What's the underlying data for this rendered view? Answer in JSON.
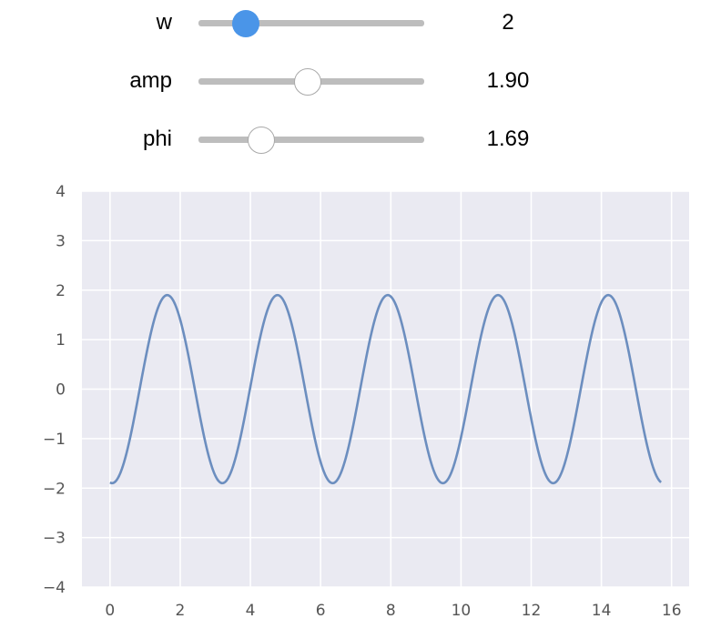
{
  "sliders": [
    {
      "label": "w",
      "value_text": "2",
      "fraction": 0.21,
      "active": true
    },
    {
      "label": "amp",
      "value_text": "1.90",
      "fraction": 0.485,
      "active": false
    },
    {
      "label": "phi",
      "value_text": "1.69",
      "fraction": 0.28,
      "active": false
    }
  ],
  "colors": {
    "plot_background": "#eaeaf2",
    "grid": "#ffffff",
    "line": "#6c8ebf",
    "slider_active": "#4a95e8",
    "slider_track": "#bdbdbd",
    "tick_text": "#555555"
  },
  "chart_data": {
    "type": "line",
    "title": "",
    "xlabel": "",
    "ylabel": "",
    "xlim": [
      -0.8,
      16.5
    ],
    "ylim": [
      -4,
      4
    ],
    "xticks": [
      0,
      2,
      4,
      6,
      8,
      10,
      12,
      14,
      16
    ],
    "yticks": [
      -4,
      -3,
      -2,
      -1,
      0,
      1,
      2,
      3,
      4
    ],
    "ytick_labels": [
      "−4",
      "−3",
      "−2",
      "−1",
      "0",
      "1",
      "2",
      "3",
      "4"
    ],
    "grid": true,
    "function": "y = amp * sin(w * x - phi)",
    "params": {
      "w": 2,
      "amp": 1.9,
      "phi": 1.69
    },
    "x_range": [
      0,
      15.7
    ],
    "series": [
      {
        "x": [
          0,
          0.845,
          1.63,
          2.415,
          3.2,
          3.985,
          4.77,
          5.555,
          6.34,
          7.125,
          7.91,
          8.695,
          9.48,
          10.265,
          11.05,
          11.835,
          12.62,
          13.405,
          14.19,
          14.975,
          15.7
        ],
        "y": [
          -1.89,
          0,
          1.9,
          0,
          -1.9,
          0,
          1.9,
          0,
          -1.9,
          0,
          1.9,
          0,
          -1.9,
          0,
          1.9,
          0,
          -1.9,
          0,
          1.9,
          0,
          -1.85
        ]
      }
    ]
  }
}
